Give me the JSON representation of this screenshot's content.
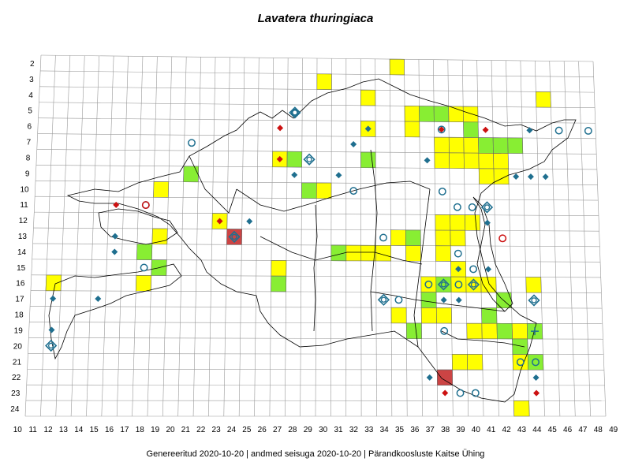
{
  "title": "Lavatera thuringiaca",
  "footer": "Genereeritud 2020-10-20  |  andmed seisuga 2020-10-20  |  Pärandkoosluste Kaitse Ühing",
  "grid": {
    "x_labels": [
      "10",
      "11",
      "12",
      "13",
      "14",
      "15",
      "16",
      "17",
      "18",
      "19",
      "20",
      "21",
      "22",
      "23",
      "24",
      "25",
      "26",
      "27",
      "28",
      "29",
      "30",
      "31",
      "32",
      "33",
      "34",
      "35",
      "36",
      "37",
      "38",
      "39",
      "40",
      "41",
      "42",
      "43",
      "44",
      "45",
      "46",
      "47",
      "48",
      "49"
    ],
    "y_labels": [
      "2",
      "3",
      "4",
      "5",
      "6",
      "7",
      "8",
      "9",
      "10",
      "11",
      "12",
      "13",
      "14",
      "15",
      "16",
      "17",
      "18",
      "19",
      "20",
      "21",
      "22",
      "23",
      "24"
    ]
  },
  "colors": {
    "yellow": "#ffff00",
    "green": "#88ee33",
    "red_cell": "#cc4444",
    "blue": "#1f6f8f",
    "red": "#cc1111",
    "grid": "#999999"
  },
  "cells_yellow": [
    [
      30,
      3
    ],
    [
      33,
      4
    ],
    [
      35,
      2
    ],
    [
      36,
      5
    ],
    [
      45,
      4
    ],
    [
      36,
      6
    ],
    [
      38,
      7
    ],
    [
      39,
      7
    ],
    [
      40,
      7
    ],
    [
      38,
      8
    ],
    [
      39,
      8
    ],
    [
      40,
      8
    ],
    [
      41,
      8
    ],
    [
      42,
      8
    ],
    [
      42,
      9
    ],
    [
      41,
      9
    ],
    [
      33,
      6
    ],
    [
      39,
      5
    ],
    [
      40,
      5
    ],
    [
      27,
      8
    ],
    [
      29,
      10
    ],
    [
      30,
      10
    ],
    [
      19,
      10
    ],
    [
      23,
      12
    ],
    [
      38,
      12
    ],
    [
      39,
      12
    ],
    [
      40,
      12
    ],
    [
      38,
      13
    ],
    [
      39,
      13
    ],
    [
      35,
      13
    ],
    [
      33,
      14
    ],
    [
      34,
      14
    ],
    [
      31,
      14
    ],
    [
      32,
      14
    ],
    [
      36,
      14
    ],
    [
      38,
      14
    ],
    [
      19,
      13
    ],
    [
      39,
      15
    ],
    [
      39,
      16
    ],
    [
      40,
      16
    ],
    [
      41,
      16
    ],
    [
      37,
      16
    ],
    [
      44,
      16
    ],
    [
      27,
      15
    ],
    [
      18,
      16
    ],
    [
      35,
      18
    ],
    [
      37,
      18
    ],
    [
      38,
      18
    ],
    [
      40,
      19
    ],
    [
      41,
      19
    ],
    [
      43,
      19
    ],
    [
      43,
      20
    ],
    [
      43,
      21
    ],
    [
      39,
      21
    ],
    [
      40,
      21
    ],
    [
      12,
      16
    ],
    [
      43,
      24
    ]
  ],
  "cells_green": [
    [
      37,
      5
    ],
    [
      38,
      5
    ],
    [
      41,
      7
    ],
    [
      42,
      7
    ],
    [
      43,
      7
    ],
    [
      33,
      8
    ],
    [
      28,
      8
    ],
    [
      21,
      9
    ],
    [
      29,
      10
    ],
    [
      36,
      13
    ],
    [
      18,
      14
    ],
    [
      19,
      15
    ],
    [
      31,
      14
    ],
    [
      27,
      16
    ],
    [
      38,
      16
    ],
    [
      37,
      17
    ],
    [
      42,
      17
    ],
    [
      41,
      18
    ],
    [
      36,
      19
    ],
    [
      42,
      19
    ],
    [
      44,
      19
    ],
    [
      43,
      20
    ],
    [
      44,
      21
    ],
    [
      40,
      6
    ]
  ],
  "cells_red": [
    [
      24,
      13
    ],
    [
      38,
      22
    ]
  ],
  "symbols": [
    {
      "t": "rd",
      "x": 27,
      "y": 6
    },
    {
      "t": "rd",
      "x": 38,
      "y": 6
    },
    {
      "t": "rd",
      "x": 41,
      "y": 6
    },
    {
      "t": "rd",
      "x": 27,
      "y": 8
    },
    {
      "t": "rd",
      "x": 16,
      "y": 11
    },
    {
      "t": "rd",
      "x": 23,
      "y": 12
    },
    {
      "t": "rd",
      "x": 38,
      "y": 23
    },
    {
      "t": "rd",
      "x": 44,
      "y": 23
    },
    {
      "t": "bd",
      "x": 33,
      "y": 6
    },
    {
      "t": "bd",
      "x": 32,
      "y": 7
    },
    {
      "t": "bd",
      "x": 37,
      "y": 8
    },
    {
      "t": "bd",
      "x": 43,
      "y": 9
    },
    {
      "t": "bd",
      "x": 44,
      "y": 9
    },
    {
      "t": "bd",
      "x": 45,
      "y": 9
    },
    {
      "t": "bd",
      "x": 44,
      "y": 6
    },
    {
      "t": "bd",
      "x": 28,
      "y": 9
    },
    {
      "t": "bd",
      "x": 31,
      "y": 9
    },
    {
      "t": "bd",
      "x": 25,
      "y": 12
    },
    {
      "t": "bd",
      "x": 16,
      "y": 13
    },
    {
      "t": "bd",
      "x": 16,
      "y": 14
    },
    {
      "t": "bd",
      "x": 41,
      "y": 12
    },
    {
      "t": "bd",
      "x": 39,
      "y": 15
    },
    {
      "t": "bd",
      "x": 41,
      "y": 15
    },
    {
      "t": "bd",
      "x": 38,
      "y": 17
    },
    {
      "t": "bd",
      "x": 39,
      "y": 17
    },
    {
      "t": "bd",
      "x": 12,
      "y": 17
    },
    {
      "t": "bd",
      "x": 15,
      "y": 17
    },
    {
      "t": "bd",
      "x": 12,
      "y": 19
    },
    {
      "t": "bd",
      "x": 37,
      "y": 22
    },
    {
      "t": "bd",
      "x": 44,
      "y": 22
    },
    {
      "t": "bc",
      "x": 28,
      "y": 5
    },
    {
      "t": "bc",
      "x": 21,
      "y": 7
    },
    {
      "t": "bc",
      "x": 38,
      "y": 6
    },
    {
      "t": "bc",
      "x": 46,
      "y": 6
    },
    {
      "t": "bc",
      "x": 48,
      "y": 6
    },
    {
      "t": "bc",
      "x": 32,
      "y": 10
    },
    {
      "t": "bc",
      "x": 38,
      "y": 10
    },
    {
      "t": "bc",
      "x": 39,
      "y": 11
    },
    {
      "t": "bc",
      "x": 40,
      "y": 11
    },
    {
      "t": "bc",
      "x": 18,
      "y": 11
    },
    {
      "t": "bc",
      "x": 34,
      "y": 13
    },
    {
      "t": "bc",
      "x": 39,
      "y": 14
    },
    {
      "t": "bc",
      "x": 40,
      "y": 15
    },
    {
      "t": "bc",
      "x": 18,
      "y": 15
    },
    {
      "t": "bc",
      "x": 35,
      "y": 17
    },
    {
      "t": "bc",
      "x": 38,
      "y": 19
    },
    {
      "t": "bc",
      "x": 43,
      "y": 21
    },
    {
      "t": "bc",
      "x": 44,
      "y": 21
    },
    {
      "t": "bc",
      "x": 39,
      "y": 23
    },
    {
      "t": "bc",
      "x": 40,
      "y": 23
    },
    {
      "t": "bc",
      "x": 37,
      "y": 16
    },
    {
      "t": "bc",
      "x": 39,
      "y": 16
    },
    {
      "t": "rc",
      "x": 18,
      "y": 11
    },
    {
      "t": "rc",
      "x": 42,
      "y": 13
    },
    {
      "t": "bdc",
      "x": 28,
      "y": 5
    },
    {
      "t": "bdc",
      "x": 29,
      "y": 8
    },
    {
      "t": "bdc",
      "x": 41,
      "y": 11
    },
    {
      "t": "bdc",
      "x": 34,
      "y": 17
    },
    {
      "t": "bdc",
      "x": 38,
      "y": 16
    },
    {
      "t": "bdc",
      "x": 40,
      "y": 16
    },
    {
      "t": "bdc",
      "x": 44,
      "y": 17
    },
    {
      "t": "bdc",
      "x": 12,
      "y": 20
    },
    {
      "t": "bdc",
      "x": 24,
      "y": 13
    },
    {
      "t": "plus",
      "x": 44,
      "y": 19
    }
  ]
}
